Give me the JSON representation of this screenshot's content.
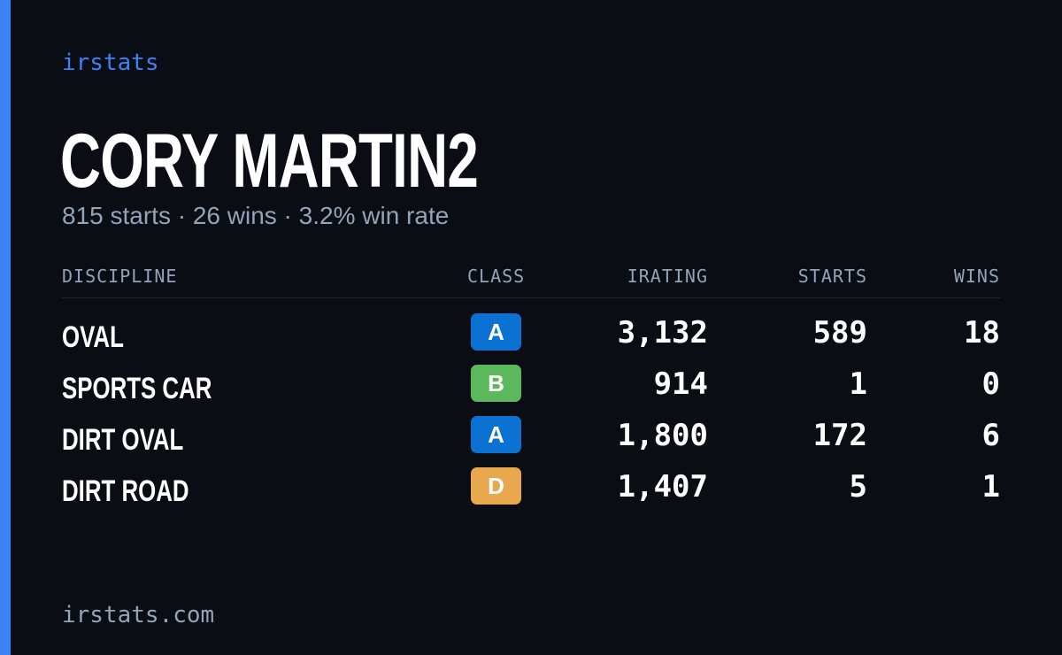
{
  "brand": "irstats",
  "driver": {
    "name": "CORY MARTIN2",
    "summary": "815 starts · 26 wins · 3.2% win rate"
  },
  "table": {
    "headers": {
      "discipline": "DISCIPLINE",
      "class": "CLASS",
      "irating": "IRATING",
      "starts": "STARTS",
      "wins": "WINS"
    },
    "rows": [
      {
        "discipline": "OVAL",
        "class": "A",
        "class_color": "#0b72d4",
        "irating": "3,132",
        "starts": "589",
        "wins": "18"
      },
      {
        "discipline": "SPORTS CAR",
        "class": "B",
        "class_color": "#5cb85c",
        "irating": "914",
        "starts": "1",
        "wins": "0"
      },
      {
        "discipline": "DIRT OVAL",
        "class": "A",
        "class_color": "#0b72d4",
        "irating": "1,800",
        "starts": "172",
        "wins": "6"
      },
      {
        "discipline": "DIRT ROAD",
        "class": "D",
        "class_color": "#e8a94e",
        "irating": "1,407",
        "starts": "5",
        "wins": "1"
      }
    ]
  },
  "footer": "irstats.com",
  "colors": {
    "background": "#0a0d14",
    "accent": "#3b82f6",
    "muted": "#94a3b8"
  }
}
